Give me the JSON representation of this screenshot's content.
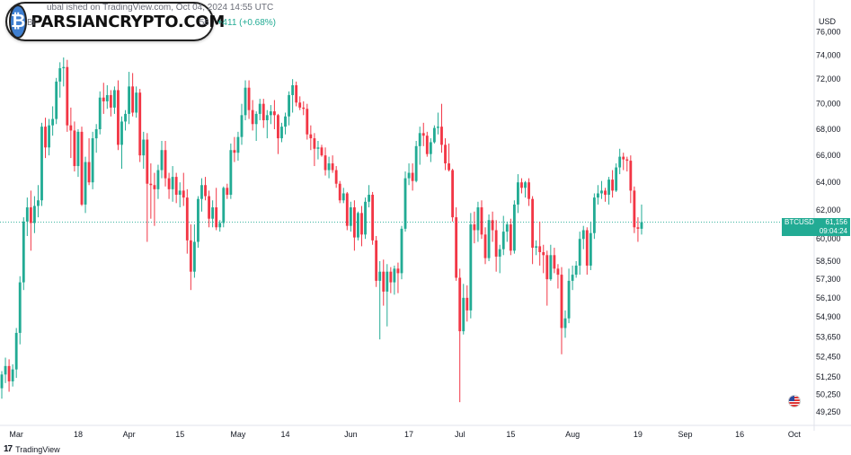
{
  "header": {
    "published": "ubal ished on TradingView.com, Oct 04, 2024 14:55 UTC",
    "symbol_prefix": "Bi",
    "price_fragment": "56",
    "change": "+411 (+0.68%)",
    "currency": "USD"
  },
  "watermark": {
    "text": "PARSIANCRYPTO.COM",
    "icon": "bitcoin-coin-icon"
  },
  "footer": {
    "brand": "TradingView",
    "brand_mark": "17"
  },
  "price_tag": {
    "symbol": "BTCUSD",
    "price": "61,156",
    "countdown": "09:04:24"
  },
  "colors": {
    "up": "#22ab94",
    "down": "#f23645",
    "tag": "#22ab94"
  },
  "chart_data": {
    "type": "candlestick",
    "title": "",
    "xlabel": "",
    "ylabel": "",
    "y_scale": "log",
    "ylim": [
      48700,
      78000
    ],
    "current_price": 61156,
    "y_ticks": [
      "76,000",
      "74,000",
      "72,000",
      "70,000",
      "68,000",
      "66,000",
      "64,000",
      "62,000",
      "60,000",
      "58,500",
      "57,300",
      "56,100",
      "54,900",
      "53,650",
      "52,450",
      "51,250",
      "50,250",
      "49,250"
    ],
    "x_tick_labels": [
      "Mar",
      "18",
      "Apr",
      "15",
      "May",
      "14",
      "Jun",
      "17",
      "Jul",
      "15",
      "Aug",
      "19",
      "Sep",
      "16",
      "Oct"
    ],
    "date_range": [
      "2024-02-26",
      "2024-10-04"
    ],
    "ohlc": [
      [
        50600,
        51600,
        50000,
        51400
      ],
      [
        51400,
        52400,
        50900,
        51900
      ],
      [
        51900,
        52300,
        50400,
        51000
      ],
      [
        51000,
        52000,
        50700,
        51700
      ],
      [
        51700,
        54200,
        51200,
        53900
      ],
      [
        53900,
        57500,
        53200,
        57100
      ],
      [
        57100,
        61500,
        56600,
        61200
      ],
      [
        61200,
        62900,
        60200,
        62200
      ],
      [
        62200,
        63400,
        59200,
        61100
      ],
      [
        61100,
        63000,
        60400,
        62300
      ],
      [
        62300,
        63800,
        61500,
        62700
      ],
      [
        62700,
        68500,
        62300,
        68200
      ],
      [
        68200,
        68900,
        65800,
        66600
      ],
      [
        66600,
        68800,
        66000,
        68300
      ],
      [
        68300,
        69800,
        67500,
        68800
      ],
      [
        68800,
        72100,
        68400,
        71800
      ],
      [
        71800,
        73400,
        70500,
        72900
      ],
      [
        72900,
        73800,
        71400,
        73000
      ],
      [
        73000,
        73600,
        67800,
        68300
      ],
      [
        68300,
        69700,
        65800,
        67900
      ],
      [
        67900,
        68600,
        64800,
        65200
      ],
      [
        65200,
        68000,
        64400,
        67800
      ],
      [
        67800,
        68200,
        62300,
        62400
      ],
      [
        62400,
        65900,
        61800,
        65500
      ],
      [
        65500,
        67300,
        63800,
        64000
      ],
      [
        64000,
        67800,
        63500,
        67300
      ],
      [
        67300,
        68400,
        66200,
        68000
      ],
      [
        68000,
        71000,
        67600,
        70500
      ],
      [
        70500,
        71700,
        69200,
        70200
      ],
      [
        70200,
        71500,
        69600,
        70700
      ],
      [
        70700,
        71100,
        69000,
        69700
      ],
      [
        69700,
        71400,
        69200,
        71100
      ],
      [
        71100,
        71900,
        66400,
        66800
      ],
      [
        66800,
        69000,
        65000,
        68600
      ],
      [
        68600,
        69500,
        67900,
        69200
      ],
      [
        69200,
        72600,
        68400,
        71400
      ],
      [
        71400,
        72500,
        69000,
        69300
      ],
      [
        69300,
        71400,
        68900,
        70900
      ],
      [
        70900,
        71200,
        65500,
        66000
      ],
      [
        66000,
        67800,
        65000,
        67200
      ],
      [
        67200,
        67700,
        59800,
        63900
      ],
      [
        63900,
        65400,
        61400,
        63800
      ],
      [
        63800,
        64700,
        60900,
        63500
      ],
      [
        63500,
        65300,
        62800,
        64900
      ],
      [
        64900,
        67100,
        64300,
        66400
      ],
      [
        66400,
        67100,
        63700,
        64300
      ],
      [
        64300,
        64700,
        62800,
        63500
      ],
      [
        63500,
        65200,
        62600,
        64400
      ],
      [
        64400,
        64700,
        62500,
        63100
      ],
      [
        63100,
        64000,
        62200,
        63400
      ],
      [
        63400,
        64700,
        62300,
        62900
      ],
      [
        62900,
        63500,
        59000,
        59900
      ],
      [
        59900,
        61000,
        56600,
        57800
      ],
      [
        57800,
        61000,
        57400,
        59800
      ],
      [
        59800,
        63000,
        59400,
        62800
      ],
      [
        62800,
        64300,
        61900,
        63800
      ],
      [
        63800,
        64400,
        62700,
        63000
      ],
      [
        63000,
        63400,
        60800,
        61400
      ],
      [
        61400,
        62700,
        60800,
        62200
      ],
      [
        62200,
        63600,
        60600,
        60800
      ],
      [
        60800,
        61300,
        60500,
        61100
      ],
      [
        61100,
        63700,
        60800,
        63600
      ],
      [
        63600,
        63900,
        62800,
        63100
      ],
      [
        63100,
        66900,
        62800,
        66400
      ],
      [
        66400,
        67400,
        65500,
        66200
      ],
      [
        66200,
        67800,
        65600,
        67400
      ],
      [
        67400,
        70000,
        66800,
        69100
      ],
      [
        69100,
        71900,
        68700,
        71300
      ],
      [
        71300,
        71900,
        68800,
        69500
      ],
      [
        69500,
        70300,
        67900,
        68400
      ],
      [
        68400,
        69400,
        67100,
        69200
      ],
      [
        69200,
        70400,
        68700,
        70000
      ],
      [
        70000,
        70400,
        68100,
        68700
      ],
      [
        68700,
        69500,
        67300,
        69100
      ],
      [
        69100,
        69900,
        68400,
        69400
      ],
      [
        69400,
        70300,
        68000,
        69100
      ],
      [
        69100,
        69200,
        66100,
        67300
      ],
      [
        67300,
        68500,
        67000,
        68200
      ],
      [
        68200,
        69300,
        67600,
        69000
      ],
      [
        69000,
        71000,
        68300,
        70700
      ],
      [
        70700,
        72000,
        69300,
        71500
      ],
      [
        71500,
        71800,
        69800,
        70100
      ],
      [
        70100,
        70600,
        69500,
        69700
      ],
      [
        69700,
        70200,
        69100,
        69600
      ],
      [
        69600,
        70000,
        67200,
        67600
      ],
      [
        67600,
        68300,
        66400,
        67300
      ],
      [
        67300,
        67700,
        65200,
        66500
      ],
      [
        66500,
        67100,
        65700,
        66600
      ],
      [
        66600,
        66800,
        65900,
        66000
      ],
      [
        66000,
        66600,
        64500,
        64900
      ],
      [
        64900,
        65900,
        64300,
        65400
      ],
      [
        65400,
        66000,
        64700,
        64900
      ],
      [
        64900,
        65200,
        63600,
        63900
      ],
      [
        63900,
        64100,
        62500,
        62700
      ],
      [
        62700,
        63600,
        62500,
        63200
      ],
      [
        63200,
        63300,
        60600,
        60900
      ],
      [
        60900,
        62600,
        60500,
        62200
      ],
      [
        62200,
        62700,
        59200,
        60100
      ],
      [
        60100,
        61900,
        59900,
        61800
      ],
      [
        61800,
        62300,
        59500,
        60300
      ],
      [
        60300,
        62900,
        60000,
        62600
      ],
      [
        62600,
        63800,
        62200,
        63100
      ],
      [
        63100,
        63300,
        59600,
        59900
      ],
      [
        59900,
        60200,
        56800,
        57200
      ],
      [
        57200,
        58500,
        53500,
        57800
      ],
      [
        57800,
        58600,
        55600,
        56500
      ],
      [
        56500,
        58300,
        54300,
        57800
      ],
      [
        57800,
        58100,
        56400,
        57100
      ],
      [
        57100,
        58200,
        56300,
        58000
      ],
      [
        58000,
        58400,
        56400,
        57700
      ],
      [
        57700,
        60900,
        57300,
        60700
      ],
      [
        60700,
        64800,
        60500,
        64300
      ],
      [
        64300,
        65400,
        63800,
        64700
      ],
      [
        64700,
        65400,
        63400,
        64100
      ],
      [
        64100,
        67100,
        64000,
        66700
      ],
      [
        66700,
        68200,
        65300,
        67700
      ],
      [
        67700,
        68500,
        66700,
        67500
      ],
      [
        67500,
        67800,
        65900,
        66100
      ],
      [
        66100,
        67300,
        65500,
        67000
      ],
      [
        67000,
        68300,
        66900,
        68100
      ],
      [
        68100,
        69300,
        67600,
        68200
      ],
      [
        68200,
        70000,
        66200,
        66800
      ],
      [
        66800,
        67300,
        64900,
        65400
      ],
      [
        65400,
        66900,
        64800,
        64900
      ],
      [
        64900,
        65000,
        61200,
        61500
      ],
      [
        61500,
        62200,
        57200,
        57400
      ],
      [
        57400,
        58000,
        49800,
        54000
      ],
      [
        54000,
        57000,
        53800,
        56100
      ],
      [
        56100,
        56900,
        54600,
        55300
      ],
      [
        55300,
        61800,
        54800,
        61000
      ],
      [
        61000,
        61900,
        59700,
        60600
      ],
      [
        60600,
        62600,
        59800,
        62200
      ],
      [
        62200,
        62700,
        60000,
        60300
      ],
      [
        60300,
        60800,
        58300,
        58700
      ],
      [
        58700,
        61700,
        58500,
        61300
      ],
      [
        61300,
        61900,
        59800,
        60600
      ],
      [
        60600,
        61300,
        57800,
        58800
      ],
      [
        58800,
        59600,
        57700,
        59300
      ],
      [
        59300,
        61600,
        58900,
        60500
      ],
      [
        60500,
        61200,
        59800,
        61000
      ],
      [
        61000,
        61400,
        58900,
        59200
      ],
      [
        59200,
        62700,
        59000,
        62400
      ],
      [
        62400,
        64600,
        61800,
        64000
      ],
      [
        64000,
        64300,
        63200,
        63600
      ],
      [
        63600,
        64100,
        62900,
        64000
      ],
      [
        64000,
        64300,
        62300,
        62800
      ],
      [
        62800,
        63000,
        58300,
        59400
      ],
      [
        59400,
        59900,
        58900,
        59500
      ],
      [
        59500,
        61200,
        58200,
        59100
      ],
      [
        59100,
        59600,
        57700,
        58900
      ],
      [
        58900,
        59200,
        55600,
        57300
      ],
      [
        57300,
        59600,
        57200,
        58900
      ],
      [
        58900,
        59400,
        57700,
        58000
      ],
      [
        58000,
        58300,
        56700,
        57600
      ],
      [
        57600,
        58100,
        52600,
        54200
      ],
      [
        54200,
        55300,
        53600,
        54800
      ],
      [
        54800,
        58000,
        54500,
        57200
      ],
      [
        57200,
        58200,
        56600,
        57600
      ],
      [
        57600,
        58500,
        57400,
        58200
      ],
      [
        58200,
        60500,
        57600,
        60000
      ],
      [
        60000,
        60900,
        59300,
        60600
      ],
      [
        60600,
        60800,
        57600,
        58200
      ],
      [
        58200,
        61200,
        57900,
        60400
      ],
      [
        60400,
        63200,
        60000,
        62900
      ],
      [
        62900,
        63800,
        62400,
        63200
      ],
      [
        63200,
        64100,
        62800,
        63400
      ],
      [
        63400,
        63600,
        62600,
        63100
      ],
      [
        63100,
        64400,
        62400,
        64200
      ],
      [
        64200,
        64900,
        62900,
        63400
      ],
      [
        63400,
        65400,
        63300,
        65100
      ],
      [
        65100,
        66500,
        64600,
        65900
      ],
      [
        65900,
        66200,
        64900,
        65700
      ],
      [
        65700,
        65900,
        64800,
        65600
      ],
      [
        65600,
        66000,
        62500,
        63400
      ],
      [
        63400,
        63700,
        60400,
        60800
      ],
      [
        60800,
        61500,
        59800,
        60700
      ],
      [
        60700,
        62400,
        60300,
        61156
      ]
    ]
  }
}
